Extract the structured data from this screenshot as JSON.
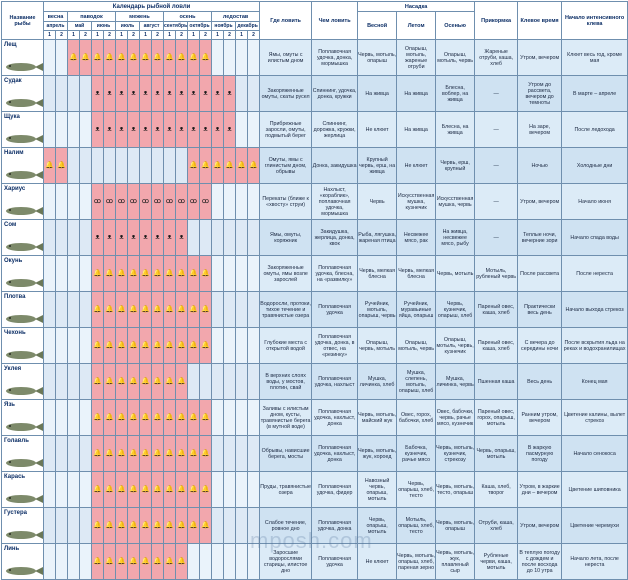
{
  "headers": {
    "fish_name": "Название рыбы",
    "calendar": "Календарь рыбной ловли",
    "seasons": [
      "весна",
      "паводок",
      "межень",
      "осень",
      "ледостав"
    ],
    "months": [
      "апрель",
      "май",
      "июнь",
      "июль",
      "август",
      "сентябрь",
      "октябрь",
      "ноябрь",
      "декабрь"
    ],
    "halves": [
      "1",
      "2",
      "1",
      "2",
      "1",
      "2",
      "1",
      "2",
      "1",
      "2",
      "1",
      "2",
      "1",
      "2",
      "1",
      "2",
      "1",
      "2"
    ],
    "where": "Где ловить",
    "gear": "Чем ловить",
    "bait": "Насадка",
    "spring": "Весной",
    "summer": "Летом",
    "autumn": "Осенью",
    "groundbait": "Прикормка",
    "bite_time": "Клевое время",
    "intensive": "Начало интенсивного клева"
  },
  "symbols": {
    "bell": "🔔",
    "hooks": "ᴥ",
    "loop": "ꝏ"
  },
  "rows": [
    {
      "name": "Лещ",
      "on": [
        0,
        0,
        1,
        1,
        1,
        1,
        1,
        1,
        1,
        1,
        1,
        1,
        1,
        1,
        0,
        0,
        0,
        0
      ],
      "glyph": "bell",
      "where": "Ямы, омуты с илистым дном",
      "gear": "Поплавочная удочка, донка, мормышка",
      "spring": "Червь, мотыль, опарыш",
      "summer": "Опарыш, мотыль, жареные отруби",
      "autumn": "Опарыш, мотыль, червь",
      "groundbait": "Жареные отруби, каша, хлеб",
      "bite": "Утром, вечером",
      "start": "Клюет весь год, кроме мая"
    },
    {
      "name": "Судак",
      "on": [
        0,
        0,
        0,
        0,
        1,
        1,
        1,
        1,
        1,
        1,
        1,
        1,
        1,
        1,
        1,
        1,
        0,
        0
      ],
      "glyph": "hooks",
      "where": "Закоряженные омуты, скаты русел",
      "gear": "Спиннинг, удочка, донка, кружки",
      "spring": "На живца",
      "summer": "На живца",
      "autumn": "Блесна, воблер, на живца",
      "groundbait": "—",
      "bite": "Утром до рассвета, вечером до темноты",
      "start": "В марте – апреле"
    },
    {
      "name": "Щука",
      "on": [
        0,
        0,
        0,
        0,
        1,
        1,
        1,
        1,
        1,
        1,
        1,
        1,
        1,
        1,
        1,
        1,
        0,
        0
      ],
      "glyph": "hooks",
      "where": "Прибрежные заросли, омуты, подмытый берег",
      "gear": "Спиннинг, дорожка, кружки, жерлица",
      "spring": "Не клюет",
      "summer": "На живца",
      "autumn": "Блесна, на живца",
      "groundbait": "—",
      "bite": "На заре, вечером",
      "start": "После ледохода"
    },
    {
      "name": "Налим",
      "on": [
        1,
        1,
        0,
        0,
        0,
        0,
        0,
        0,
        0,
        0,
        0,
        0,
        1,
        1,
        1,
        1,
        1,
        1
      ],
      "glyph": "bell",
      "where": "Омуты, ямы с глинистым дном, обрывы",
      "gear": "Донка, закидушка",
      "spring": "Крупный червь, ерш, на живца",
      "summer": "Не клюет",
      "autumn": "Червь, ерш, крупный",
      "groundbait": "—",
      "bite": "Ночью",
      "start": "Холодные дни"
    },
    {
      "name": "Хариус",
      "on": [
        0,
        0,
        0,
        0,
        1,
        1,
        1,
        1,
        1,
        1,
        1,
        1,
        1,
        1,
        0,
        0,
        0,
        0
      ],
      "glyph": "loop",
      "where": "Перекаты (ближе к «хвосту» струи)",
      "gear": "Нахлыст, «кораблик», поплавочная удочка, мормышка",
      "spring": "Червь",
      "summer": "Искусственная мушка, кузнечик",
      "autumn": "Искусственная мушка, червь",
      "groundbait": "—",
      "bite": "Утром, вечером",
      "start": "Начало июня"
    },
    {
      "name": "Сом",
      "on": [
        0,
        0,
        0,
        0,
        1,
        1,
        1,
        1,
        1,
        1,
        1,
        1,
        0,
        0,
        0,
        0,
        0,
        0
      ],
      "glyph": "hooks",
      "where": "Ямы, омуты, коряжник",
      "gear": "Закидушка, жерлица, донка, квок",
      "spring": "Рыба, лягушка, жареная птица",
      "summer": "Несвежее мясо, рак",
      "autumn": "На живца, несвежее мясо, рыбу",
      "groundbait": "—",
      "bite": "Теплые ночи, вечерние зори",
      "start": "Начало спада воды"
    },
    {
      "name": "Окунь",
      "on": [
        0,
        0,
        0,
        0,
        1,
        1,
        1,
        1,
        1,
        1,
        1,
        1,
        1,
        1,
        0,
        0,
        0,
        0
      ],
      "glyph": "bell",
      "where": "Закоряженные омуты, ямы возле зарослей",
      "gear": "Поплавочная удочка, блесна, на «развилку»",
      "spring": "Червь, мелкая блесна",
      "summer": "Червь, мелкая блесна",
      "autumn": "Червь, мотыль",
      "groundbait": "Мотыль, рубленый червь",
      "bite": "После рассвета",
      "start": "После нереста"
    },
    {
      "name": "Плотва",
      "on": [
        0,
        0,
        0,
        0,
        1,
        1,
        1,
        1,
        1,
        1,
        1,
        1,
        1,
        1,
        0,
        0,
        0,
        0
      ],
      "glyph": "bell",
      "where": "Водоросли, протоки, тихое течение и травянистые озера",
      "gear": "Поплавочная удочка",
      "spring": "Ручейник, мотыль, опарыш, червь",
      "summer": "Ручейник, муравьиные яйца, опарыш",
      "autumn": "Червь, кузнечик, опарыш, хлеб",
      "groundbait": "Пареный овес, каша, хлеб",
      "bite": "Практически весь день",
      "start": "Начало выхода стрекоз"
    },
    {
      "name": "Чехонь",
      "on": [
        0,
        0,
        0,
        0,
        1,
        1,
        1,
        1,
        1,
        1,
        1,
        1,
        1,
        1,
        0,
        0,
        0,
        0
      ],
      "glyph": "bell",
      "where": "Глубокие места с открытой водой",
      "gear": "Поплавочная удочка, донка, в отвес, на «резинку»",
      "spring": "Опарыш, червь, мотыль",
      "summer": "Опарыш, мотыль, червь",
      "autumn": "Опарыш, мотыль, червь, кузнечик",
      "groundbait": "Пареный овес, каша, хлеб",
      "bite": "С вечера до середины ночи",
      "start": "После вскрытия льда на реках и водохранилищах"
    },
    {
      "name": "Уклея",
      "on": [
        0,
        0,
        0,
        0,
        1,
        1,
        1,
        1,
        1,
        1,
        1,
        1,
        0,
        0,
        0,
        0,
        0,
        0
      ],
      "glyph": "bell",
      "where": "В верхних слоях воды, у мостов, плотин, свай",
      "gear": "Поплавочная удочка, нахлыст",
      "spring": "Мушка, личинка, хлеб",
      "summer": "Мушка, слепень, мотыль, опарыш, хлеб",
      "autumn": "Мушка, личинка, червь",
      "groundbait": "Пшенная каша",
      "bite": "Весь день",
      "start": "Конец мая"
    },
    {
      "name": "Язь",
      "on": [
        0,
        0,
        0,
        0,
        1,
        1,
        1,
        1,
        1,
        1,
        1,
        1,
        1,
        1,
        0,
        0,
        0,
        0
      ],
      "glyph": "bell",
      "where": "Заливы с илистым дном, кусты, травянистые берега (в мутной воде)",
      "gear": "Поплавочная удочка, нахлыст, донка",
      "spring": "Червь, мотыль, майский жук",
      "summer": "Овес, горох, бабочки, хлеб",
      "autumn": "Овес, бабочки, червь, рачье мясо, кузнечик",
      "groundbait": "Пареный овес, горох, опарыш, мотыль",
      "bite": "Ранним утром, вечером",
      "start": "Цветение калины, вылет стрекоз"
    },
    {
      "name": "Голавль",
      "on": [
        0,
        0,
        0,
        0,
        1,
        1,
        1,
        1,
        1,
        1,
        1,
        1,
        1,
        1,
        0,
        0,
        0,
        0
      ],
      "glyph": "bell",
      "where": "Обрывы, нависшие берега, мосты",
      "gear": "Поплавочная удочка, нахлыст, донка",
      "spring": "Червь, мотыль, жук, короед",
      "summer": "Бабочка, кузнечик, рачье мясо",
      "autumn": "Червь, мотыль, кузнечик, стрекозу",
      "groundbait": "Червь, опарыш, мотыль",
      "bite": "В жаркую пасмурную погоду",
      "start": "Начало сенокоса"
    },
    {
      "name": "Карась",
      "on": [
        0,
        0,
        0,
        0,
        1,
        1,
        1,
        1,
        1,
        1,
        1,
        1,
        1,
        1,
        0,
        0,
        0,
        0
      ],
      "glyph": "bell",
      "where": "Пруды, травянистые озера",
      "gear": "Поплавочная удочка, фидер",
      "spring": "Навозный червь, опарыш, мотыль",
      "summer": "Червь, опарыш, хлеб, тесто",
      "autumn": "Червь, мотыль, тесто, опарыш",
      "groundbait": "Каша, хлеб, творог",
      "bite": "Утром, в жаркие дни – вечером",
      "start": "Цветение шиповника"
    },
    {
      "name": "Густера",
      "on": [
        0,
        0,
        0,
        0,
        1,
        1,
        1,
        1,
        1,
        1,
        1,
        1,
        1,
        1,
        0,
        0,
        0,
        0
      ],
      "glyph": "bell",
      "where": "Слабое течение, ровное дно",
      "gear": "Поплавочная удочка, донка",
      "spring": "Червь, опарыш, мотыль",
      "summer": "Мотыль, опарыш, хлеб, тесто",
      "autumn": "Червь, мотыль, опарыш",
      "groundbait": "Отруби, каша, хлеб",
      "bite": "Утром, вечером",
      "start": "Цветение черемухи"
    },
    {
      "name": "Линь",
      "on": [
        0,
        0,
        0,
        0,
        1,
        1,
        1,
        1,
        1,
        1,
        1,
        1,
        0,
        0,
        0,
        0,
        0,
        0
      ],
      "glyph": "bell",
      "where": "Заросшие водорослями старицы, илистое дно",
      "gear": "Поплавочная удочка",
      "spring": "Не клюет",
      "summer": "Червь, мотыль, опарыш, хлеб, пареная зерно",
      "autumn": "Червь, мотыль, жук, плавленый сыр",
      "groundbait": "Рубленые черви, каша, мотыль",
      "bite": "В теплую погоду с дождем и после восхода до 10 утра",
      "start": "Начало лета, после нереста"
    }
  ],
  "watermark": "mposh.com"
}
